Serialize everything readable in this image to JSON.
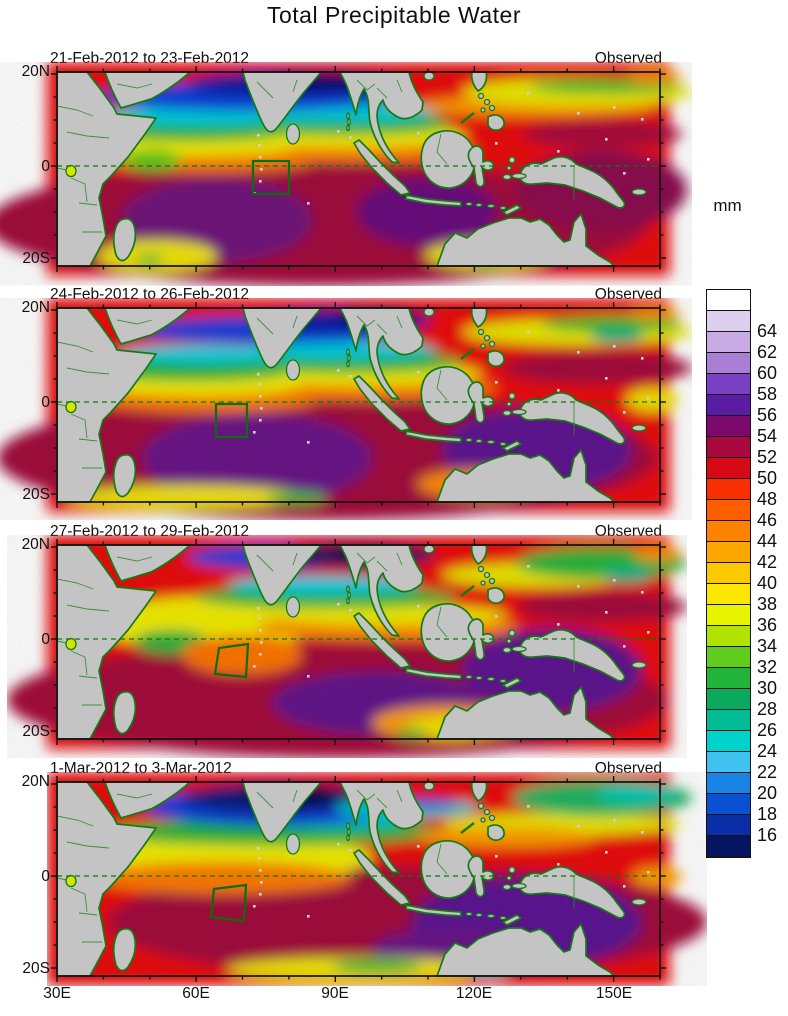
{
  "title": "Total Precipitable Water",
  "panels": [
    {
      "date_range": "21-Feb-2012 to 23-Feb-2012",
      "source": "Observed"
    },
    {
      "date_range": "24-Feb-2012 to 26-Feb-2012",
      "source": "Observed"
    },
    {
      "date_range": "27-Feb-2012 to 29-Feb-2012",
      "source": "Observed"
    },
    {
      "date_range": "1-Mar-2012 to 3-Mar-2012",
      "source": "Observed"
    }
  ],
  "axes": {
    "x_tick_labels": [
      "30E",
      "60E",
      "90E",
      "120E",
      "150E"
    ],
    "y_tick_labels": [
      "20N",
      "0",
      "20S"
    ]
  },
  "colorbar": {
    "unit": "mm",
    "tick_labels": [
      "64",
      "62",
      "60",
      "58",
      "56",
      "54",
      "52",
      "50",
      "48",
      "46",
      "44",
      "42",
      "40",
      "38",
      "36",
      "34",
      "32",
      "30",
      "28",
      "26",
      "24",
      "22",
      "20",
      "18",
      "16"
    ],
    "cell_colors_top_to_bottom": [
      "#ffffff",
      "#ddd0ee",
      "#c8abe4",
      "#a87fd4",
      "#7a40c2",
      "#5a1ca2",
      "#7c0a6e",
      "#a8083e",
      "#d60a16",
      "#f83000",
      "#fc5e00",
      "#fc8200",
      "#fca600",
      "#fcc800",
      "#fae600",
      "#e8f400",
      "#b0e400",
      "#62cc1e",
      "#22b43a",
      "#0aaa5e",
      "#00bc96",
      "#00d2cc",
      "#40c2f0",
      "#1a84e6",
      "#0a50d2",
      "#0a2ea8",
      "#051560"
    ]
  },
  "map_colors": {
    "land": "#c4c4c4",
    "coastline": "#157a15",
    "equator_line": "#0b7a0b",
    "study_box": "#0b6e0b"
  },
  "chart_data": {
    "type": "heatmap",
    "title": "Total Precipitable Water",
    "unit": "mm",
    "panels": [
      {
        "label": "21-Feb-2012 to 23-Feb-2012",
        "source": "Observed"
      },
      {
        "label": "24-Feb-2012 to 26-Feb-2012",
        "source": "Observed"
      },
      {
        "label": "27-Feb-2012 to 29-Feb-2012",
        "source": "Observed"
      },
      {
        "label": "1-Mar-2012 to 3-Mar-2012",
        "source": "Observed"
      }
    ],
    "x_axis": {
      "ticks": [
        "30E",
        "60E",
        "90E",
        "120E",
        "150E"
      ],
      "range_deg_east": [
        30,
        160
      ]
    },
    "y_axis": {
      "ticks": [
        "20N",
        "0",
        "20S"
      ],
      "range_deg_north": [
        20,
        -22
      ]
    },
    "colorbar": {
      "unit": "mm",
      "tick_values": [
        64,
        62,
        60,
        58,
        56,
        54,
        52,
        50,
        48,
        46,
        44,
        42,
        40,
        38,
        36,
        34,
        32,
        30,
        28,
        26,
        24,
        22,
        20,
        18,
        16
      ],
      "interval": 2,
      "orientation": "vertical",
      "colors_top_to_bottom": [
        "#ffffff",
        "#ddd0ee",
        "#c8abe4",
        "#a87fd4",
        "#7a40c2",
        "#5a1ca2",
        "#7c0a6e",
        "#a8083e",
        "#d60a16",
        "#f83000",
        "#fc5e00",
        "#fc8200",
        "#fca600",
        "#fcc800",
        "#fae600",
        "#e8f400",
        "#b0e400",
        "#62cc1e",
        "#22b43a",
        "#0aaa5e",
        "#00bc96",
        "#00d2cc",
        "#40c2f0",
        "#1a84e6",
        "#0a50d2",
        "#0a2ea8",
        "#051560"
      ]
    },
    "annotations": [
      "dashed green equator line at latitude 0 in every panel",
      "green study-region box near 72E-80E, 0-7S in every panel",
      "gray shading = land, green lines = coastlines and borders",
      "high TPW (red/purple, 50-60 mm) across equatorial Indian Ocean and Maritime Continent",
      "low TPW (blue, 16-24 mm) over northern Arabian Sea and north of Bay of Bengal"
    ]
  }
}
